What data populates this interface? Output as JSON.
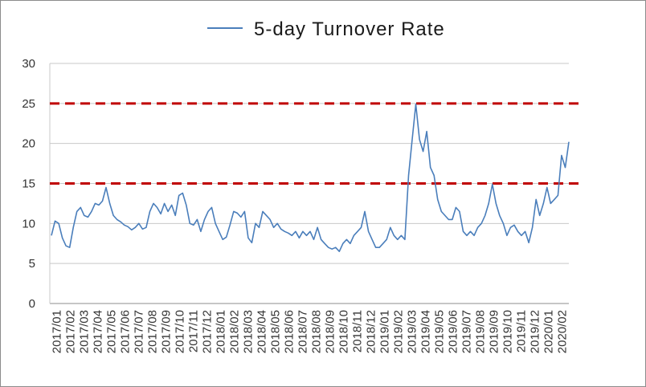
{
  "chart_data": {
    "type": "line",
    "title": "",
    "xlabel": "",
    "ylabel": "",
    "ylim": [
      0,
      30
    ],
    "y_ticks": [
      0,
      5,
      10,
      15,
      20,
      25,
      30
    ],
    "grid": "horizontal",
    "legend_position": "top",
    "x_tick_labels": [
      "2017/01",
      "2017/02",
      "2017/03",
      "2017/04",
      "2017/05",
      "2017/06",
      "2017/07",
      "2017/08",
      "2017/09",
      "2017/10",
      "2017/11",
      "2017/12",
      "2018/01",
      "2018/02",
      "2018/03",
      "2018/04",
      "2018/05",
      "2018/06",
      "2018/07",
      "2018/08",
      "2018/09",
      "2018/10",
      "2018/11",
      "2018/12",
      "2019/01",
      "2019/02",
      "2019/03",
      "2019/04",
      "2019/05",
      "2019/06",
      "2019/07",
      "2019/08",
      "2019/09",
      "2019/10",
      "2019/11",
      "2019/12",
      "2020/01",
      "2020/02"
    ],
    "series": [
      {
        "name": "5-day Turnover Rate",
        "color": "#4a7ebb",
        "values": [
          8.5,
          10.3,
          10.0,
          8.2,
          7.2,
          7.0,
          9.5,
          11.5,
          12.0,
          11.0,
          10.8,
          11.5,
          12.5,
          12.3,
          12.8,
          14.5,
          12.5,
          11.0,
          10.5,
          10.2,
          9.8,
          9.6,
          9.2,
          9.5,
          10.0,
          9.3,
          9.5,
          11.5,
          12.5,
          12.0,
          11.2,
          12.5,
          11.5,
          12.3,
          11.0,
          13.5,
          13.8,
          12.3,
          10.0,
          9.8,
          10.5,
          9.0,
          10.5,
          11.5,
          12.0,
          10.0,
          9.0,
          8.0,
          8.3,
          9.8,
          11.5,
          11.3,
          10.8,
          11.5,
          8.2,
          7.6,
          10.0,
          9.5,
          11.5,
          11.0,
          10.5,
          9.5,
          10.0,
          9.3,
          9.0,
          8.8,
          8.5,
          9.0,
          8.2,
          9.0,
          8.5,
          9.0,
          8.0,
          9.5,
          8.0,
          7.5,
          7.0,
          6.8,
          7.0,
          6.5,
          7.5,
          8.0,
          7.5,
          8.5,
          9.0,
          9.5,
          11.5,
          9.0,
          8.0,
          7.0,
          7.0,
          7.5,
          8.0,
          9.5,
          8.5,
          8.0,
          8.5,
          8.0,
          16.0,
          20.5,
          24.9,
          20.5,
          19.0,
          21.5,
          17.0,
          16.0,
          13.0,
          11.5,
          11.0,
          10.5,
          10.5,
          12.0,
          11.5,
          9.0,
          8.5,
          9.0,
          8.5,
          9.5,
          10.0,
          11.0,
          12.5,
          14.9,
          12.5,
          11.0,
          10.0,
          8.5,
          9.5,
          9.8,
          9.0,
          8.5,
          9.0,
          7.6,
          9.5,
          13.0,
          11.0,
          12.5,
          14.5,
          12.5,
          13.0,
          13.5,
          18.5,
          17.0,
          20.2
        ]
      }
    ],
    "reference_lines": [
      {
        "value": 25,
        "color": "#c00000",
        "style": "dashed"
      },
      {
        "value": 15,
        "color": "#c00000",
        "style": "dashed"
      }
    ]
  }
}
